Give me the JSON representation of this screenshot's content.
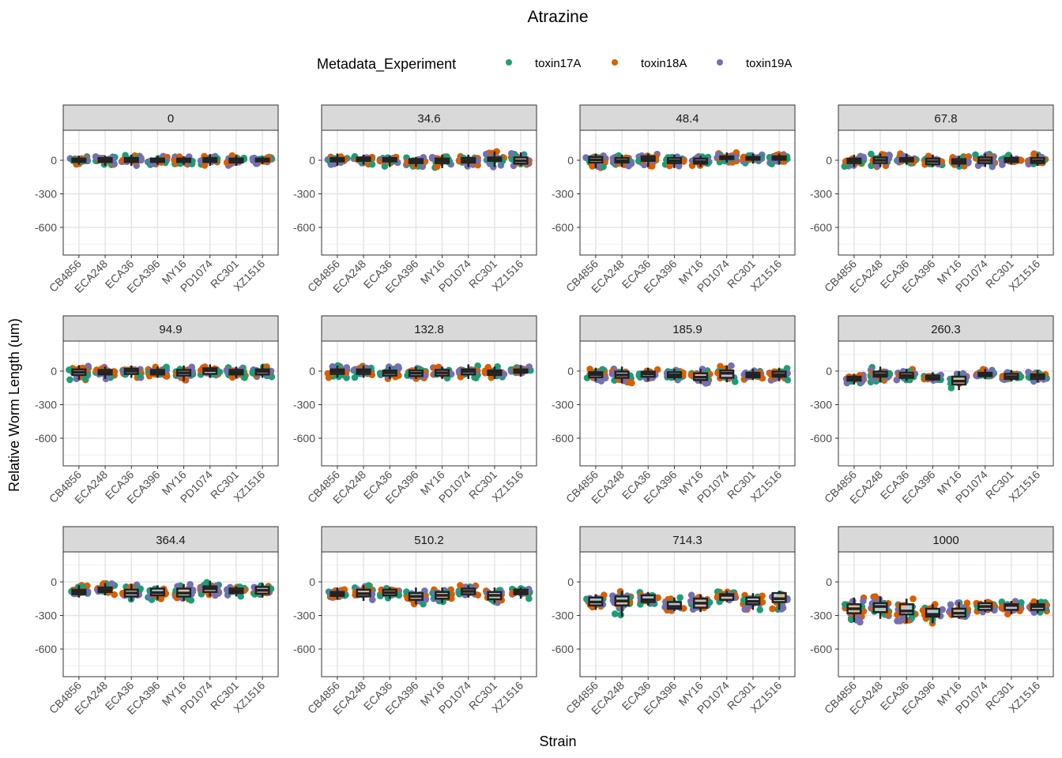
{
  "chart_data": {
    "type": "box",
    "title": "Atrazine",
    "xlabel": "Strain",
    "ylabel": "Relative Worm Length (um)",
    "ylim": [
      -847,
      268
    ],
    "yticks": [
      0,
      -300,
      -600
    ],
    "ytick_labels": [
      "0",
      "-300",
      "-600"
    ],
    "grid": true,
    "legend": {
      "title": "Metadata_Experiment",
      "position": "top",
      "entries": [
        "toxin17A",
        "toxin18A",
        "toxin19A"
      ],
      "colors": [
        "#1B9E77",
        "#D95F02",
        "#7570B3"
      ]
    },
    "categories": [
      "CB4856",
      "ECA248",
      "ECA36",
      "ECA396",
      "MY16",
      "PD1074",
      "RC301",
      "XZ1516"
    ],
    "stat_order": [
      "min",
      "q1",
      "median",
      "q3",
      "max"
    ],
    "panels": [
      {
        "label": "0",
        "boxes": [
          [
            -40,
            -15,
            0,
            15,
            40
          ],
          [
            -50,
            -15,
            0,
            20,
            40
          ],
          [
            -50,
            -15,
            0,
            20,
            50
          ],
          [
            -40,
            -15,
            0,
            15,
            40
          ],
          [
            -40,
            -15,
            0,
            15,
            35
          ],
          [
            -50,
            -15,
            5,
            20,
            55
          ],
          [
            -50,
            -20,
            0,
            15,
            45
          ],
          [
            -35,
            -10,
            5,
            15,
            30
          ]
        ]
      },
      {
        "label": "34.6",
        "boxes": [
          [
            -50,
            -10,
            5,
            20,
            60
          ],
          [
            -40,
            -5,
            10,
            25,
            50
          ],
          [
            -60,
            -10,
            5,
            20,
            40
          ],
          [
            -60,
            -25,
            -10,
            10,
            30
          ],
          [
            -70,
            -25,
            -5,
            15,
            50
          ],
          [
            -60,
            -20,
            0,
            20,
            50
          ],
          [
            -60,
            -5,
            10,
            25,
            80
          ],
          [
            -50,
            -30,
            -5,
            25,
            70
          ]
        ]
      },
      {
        "label": "48.4",
        "boxes": [
          [
            -70,
            -20,
            5,
            30,
            60
          ],
          [
            -60,
            -20,
            -5,
            20,
            50
          ],
          [
            -60,
            -5,
            15,
            35,
            60
          ],
          [
            -70,
            -25,
            -5,
            20,
            50
          ],
          [
            -60,
            -30,
            -10,
            15,
            40
          ],
          [
            -20,
            10,
            20,
            35,
            70
          ],
          [
            -30,
            5,
            15,
            30,
            60
          ],
          [
            -40,
            5,
            20,
            35,
            60
          ]
        ]
      },
      {
        "label": "67.8",
        "boxes": [
          [
            -60,
            -25,
            -5,
            15,
            50
          ],
          [
            -60,
            -25,
            0,
            25,
            60
          ],
          [
            -40,
            -10,
            5,
            20,
            60
          ],
          [
            -60,
            -35,
            -10,
            15,
            50
          ],
          [
            -60,
            -30,
            -10,
            10,
            40
          ],
          [
            -60,
            -25,
            0,
            25,
            60
          ],
          [
            -40,
            -15,
            0,
            20,
            50
          ],
          [
            -50,
            -25,
            -5,
            20,
            60
          ]
        ]
      },
      {
        "label": "94.9",
        "boxes": [
          [
            -80,
            -35,
            -10,
            15,
            50
          ],
          [
            -70,
            -30,
            -10,
            10,
            40
          ],
          [
            -60,
            -25,
            0,
            20,
            50
          ],
          [
            -60,
            -30,
            -10,
            10,
            40
          ],
          [
            -90,
            -40,
            -15,
            10,
            50
          ],
          [
            -60,
            -25,
            5,
            25,
            60
          ],
          [
            -60,
            -30,
            -10,
            10,
            40
          ],
          [
            -60,
            -30,
            -5,
            15,
            60
          ]
        ]
      },
      {
        "label": "132.8",
        "boxes": [
          [
            -60,
            -25,
            -5,
            15,
            50
          ],
          [
            -60,
            -25,
            -5,
            15,
            50
          ],
          [
            -70,
            -40,
            -15,
            5,
            40
          ],
          [
            -70,
            -45,
            -20,
            5,
            40
          ],
          [
            -70,
            -40,
            -15,
            10,
            40
          ],
          [
            -70,
            -30,
            -5,
            15,
            60
          ],
          [
            -70,
            -35,
            -15,
            5,
            40
          ],
          [
            -50,
            -15,
            0,
            15,
            50
          ]
        ]
      },
      {
        "label": "185.9",
        "boxes": [
          [
            -90,
            -55,
            -30,
            -10,
            30
          ],
          [
            -110,
            -60,
            -35,
            -5,
            40
          ],
          [
            -90,
            -50,
            -25,
            -5,
            30
          ],
          [
            -80,
            -55,
            -35,
            -10,
            20
          ],
          [
            -110,
            -80,
            -55,
            -20,
            20
          ],
          [
            -100,
            -60,
            -20,
            5,
            50
          ],
          [
            -80,
            -55,
            -35,
            -15,
            20
          ],
          [
            -90,
            -50,
            -30,
            -5,
            30
          ]
        ]
      },
      {
        "label": "260.3",
        "boxes": [
          [
            -120,
            -85,
            -70,
            -50,
            -30
          ],
          [
            -100,
            -50,
            -30,
            -5,
            40
          ],
          [
            -90,
            -60,
            -40,
            -15,
            20
          ],
          [
            -90,
            -75,
            -60,
            -40,
            -10
          ],
          [
            -170,
            -120,
            -90,
            -50,
            0
          ],
          [
            -70,
            -45,
            -30,
            -15,
            20
          ],
          [
            -90,
            -70,
            -50,
            -25,
            10
          ],
          [
            -100,
            -70,
            -50,
            -30,
            10
          ]
        ]
      },
      {
        "label": "364.4",
        "boxes": [
          [
            -140,
            -110,
            -90,
            -70,
            -30
          ],
          [
            -120,
            -90,
            -70,
            -50,
            -10
          ],
          [
            -170,
            -130,
            -100,
            -70,
            -20
          ],
          [
            -160,
            -120,
            -95,
            -60,
            -30
          ],
          [
            -170,
            -130,
            -100,
            -60,
            -20
          ],
          [
            -130,
            -90,
            -60,
            -40,
            10
          ],
          [
            -130,
            -100,
            -80,
            -60,
            -40
          ],
          [
            -140,
            -105,
            -75,
            -45,
            -10
          ]
        ]
      },
      {
        "label": "510.2",
        "boxes": [
          [
            -160,
            -125,
            -110,
            -90,
            -50
          ],
          [
            -170,
            -130,
            -105,
            -70,
            -30
          ],
          [
            -150,
            -120,
            -95,
            -70,
            -50
          ],
          [
            -200,
            -160,
            -130,
            -100,
            -50
          ],
          [
            -190,
            -150,
            -120,
            -90,
            -50
          ],
          [
            -140,
            -110,
            -85,
            -60,
            -30
          ],
          [
            -190,
            -155,
            -120,
            -90,
            -50
          ],
          [
            -150,
            -110,
            -90,
            -70,
            -50
          ]
        ]
      },
      {
        "label": "714.3",
        "boxes": [
          [
            -250,
            -210,
            -180,
            -140,
            -110
          ],
          [
            -310,
            -210,
            -170,
            -130,
            -80
          ],
          [
            -210,
            -180,
            -160,
            -120,
            -90
          ],
          [
            -260,
            -240,
            -220,
            -180,
            -140
          ],
          [
            -270,
            -230,
            -190,
            -150,
            -110
          ],
          [
            -180,
            -160,
            -120,
            -110,
            -80
          ],
          [
            -250,
            -200,
            -175,
            -140,
            -100
          ],
          [
            -250,
            -180,
            -150,
            -100,
            -80
          ]
        ]
      },
      {
        "label": "1000",
        "boxes": [
          [
            -360,
            -280,
            -240,
            -200,
            -140
          ],
          [
            -330,
            -270,
            -220,
            -190,
            -130
          ],
          [
            -370,
            -290,
            -260,
            -200,
            -150
          ],
          [
            -370,
            -310,
            -290,
            -240,
            -200
          ],
          [
            -330,
            -310,
            -280,
            -240,
            -180
          ],
          [
            -270,
            -250,
            -220,
            -190,
            -160
          ],
          [
            -290,
            -250,
            -210,
            -200,
            -170
          ],
          [
            -280,
            -250,
            -220,
            -200,
            -160
          ]
        ]
      }
    ]
  }
}
